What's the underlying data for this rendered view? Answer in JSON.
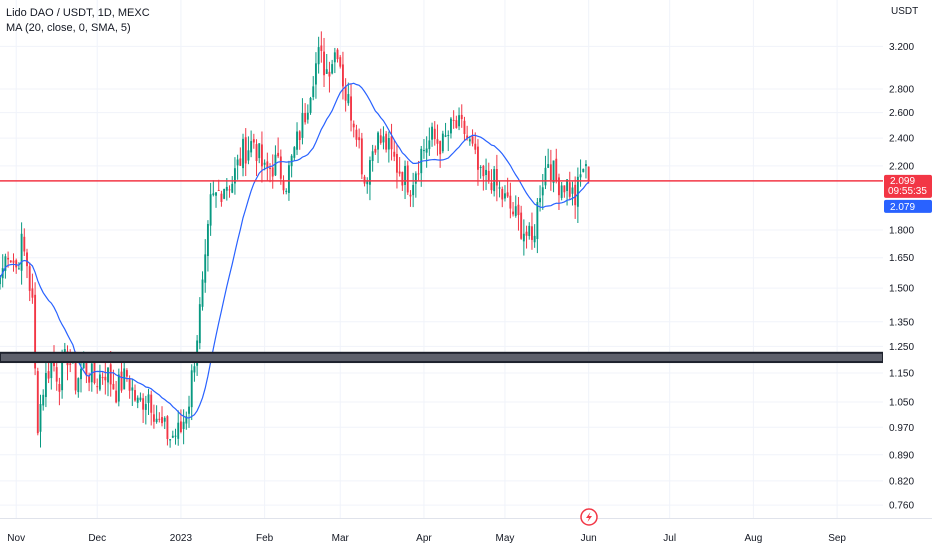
{
  "header": {
    "symbol_line": "Lido DAO / USDT, 1D, MEXC",
    "indicator_line": "MA (20, close, 0, SMA, 5)"
  },
  "colors": {
    "up": "#089981",
    "down": "#f23645",
    "ma": "#2962ff",
    "support_band": "#1e222d",
    "hline": "#f23645",
    "grid": "#f0f3fa",
    "ma_tag": "#2962ff",
    "last_tag": "#f23645",
    "logo": "#f23645"
  },
  "icons": {
    "tradingview_logo": "lightning-bolt-circle-icon"
  },
  "chart_data": {
    "type": "candlestick",
    "title": "Lido DAO / USDT, 1D, MEXC",
    "currency_label": "USDT",
    "y_scale": "log",
    "y_ticks": [
      3.2,
      2.8,
      2.6,
      2.4,
      2.2,
      1.8,
      1.65,
      1.5,
      1.35,
      1.25,
      1.15,
      1.05,
      0.97,
      0.89,
      0.82,
      0.76
    ],
    "y_tick_labels": [
      "3.200",
      "2.800",
      "2.600",
      "2.400",
      "2.200",
      "1.800",
      "1.650",
      "1.500",
      "1.350",
      "1.250",
      "1.150",
      "1.050",
      "0.970",
      "0.890",
      "0.820",
      "0.760"
    ],
    "ylim": [
      0.73,
      3.7
    ],
    "xlim": [
      "2022-10-26",
      "2023-09-18"
    ],
    "x_ticks": [
      "2022-11-01",
      "2022-12-01",
      "2023-01-01",
      "2023-02-01",
      "2023-03-01",
      "2023-04-01",
      "2023-05-01",
      "2023-06-01",
      "2023-07-01",
      "2023-08-01",
      "2023-09-01"
    ],
    "x_tick_labels": [
      "Nov",
      "Dec",
      "2023",
      "Feb",
      "Mar",
      "Apr",
      "May",
      "Jun",
      "Jul",
      "Aug",
      "Sep"
    ],
    "grid": true,
    "horizontal_line": {
      "price": 2.099
    },
    "support_zone": {
      "low": 1.19,
      "high": 1.225
    },
    "price_tags": {
      "last": {
        "value": "2.099",
        "countdown": "09:55:35"
      },
      "ma": {
        "value": "2.079"
      }
    },
    "ma_name": "MA (20, close, 0, SMA, 5)",
    "keypoints": [
      [
        "2022-10-26",
        1.55
      ],
      [
        "2022-10-29",
        1.7
      ],
      [
        "2022-11-01",
        1.6
      ],
      [
        "2022-11-03",
        1.72
      ],
      [
        "2022-11-05",
        1.62
      ],
      [
        "2022-11-07",
        1.42
      ],
      [
        "2022-11-08",
        1.15
      ],
      [
        "2022-11-09",
        0.99
      ],
      [
        "2022-11-11",
        1.1
      ],
      [
        "2022-11-14",
        1.2
      ],
      [
        "2022-11-17",
        1.13
      ],
      [
        "2022-11-20",
        1.22
      ],
      [
        "2022-11-23",
        1.12
      ],
      [
        "2022-11-26",
        1.18
      ],
      [
        "2022-11-30",
        1.12
      ],
      [
        "2022-12-04",
        1.16
      ],
      [
        "2022-12-08",
        1.09
      ],
      [
        "2022-12-12",
        1.14
      ],
      [
        "2022-12-16",
        1.04
      ],
      [
        "2022-12-20",
        1.08
      ],
      [
        "2022-12-24",
        0.98
      ],
      [
        "2022-12-28",
        0.94
      ],
      [
        "2023-01-01",
        0.96
      ],
      [
        "2023-01-04",
        1.06
      ],
      [
        "2023-01-07",
        1.3
      ],
      [
        "2023-01-10",
        1.6
      ],
      [
        "2023-01-12",
        1.95
      ],
      [
        "2023-01-14",
        2.0
      ],
      [
        "2023-01-17",
        2.08
      ],
      [
        "2023-01-20",
        2.1
      ],
      [
        "2023-01-24",
        2.3
      ],
      [
        "2023-01-28",
        2.38
      ],
      [
        "2023-02-01",
        2.15
      ],
      [
        "2023-02-05",
        2.22
      ],
      [
        "2023-02-09",
        2.1
      ],
      [
        "2023-02-12",
        2.3
      ],
      [
        "2023-02-16",
        2.6
      ],
      [
        "2023-02-19",
        2.95
      ],
      [
        "2023-02-21",
        3.1
      ],
      [
        "2023-02-24",
        2.98
      ],
      [
        "2023-02-28",
        3.2
      ],
      [
        "2023-03-03",
        2.75
      ],
      [
        "2023-03-07",
        2.5
      ],
      [
        "2023-03-10",
        2.1
      ],
      [
        "2023-03-14",
        2.4
      ],
      [
        "2023-03-18",
        2.35
      ],
      [
        "2023-03-22",
        2.2
      ],
      [
        "2023-03-27",
        2.08
      ],
      [
        "2023-03-31",
        2.3
      ],
      [
        "2023-04-04",
        2.4
      ],
      [
        "2023-04-08",
        2.35
      ],
      [
        "2023-04-12",
        2.5
      ],
      [
        "2023-04-16",
        2.45
      ],
      [
        "2023-04-19",
        2.3
      ],
      [
        "2023-04-22",
        2.1
      ],
      [
        "2023-04-26",
        2.12
      ],
      [
        "2023-04-30",
        2.0
      ],
      [
        "2023-05-04",
        1.9
      ],
      [
        "2023-05-08",
        1.8
      ],
      [
        "2023-05-11",
        1.72
      ],
      [
        "2023-05-14",
        2.05
      ],
      [
        "2023-05-17",
        2.25
      ],
      [
        "2023-05-20",
        2.1
      ],
      [
        "2023-05-24",
        2.08
      ],
      [
        "2023-05-27",
        1.98
      ],
      [
        "2023-05-30",
        2.2
      ],
      [
        "2023-06-01",
        2.099
      ]
    ]
  }
}
